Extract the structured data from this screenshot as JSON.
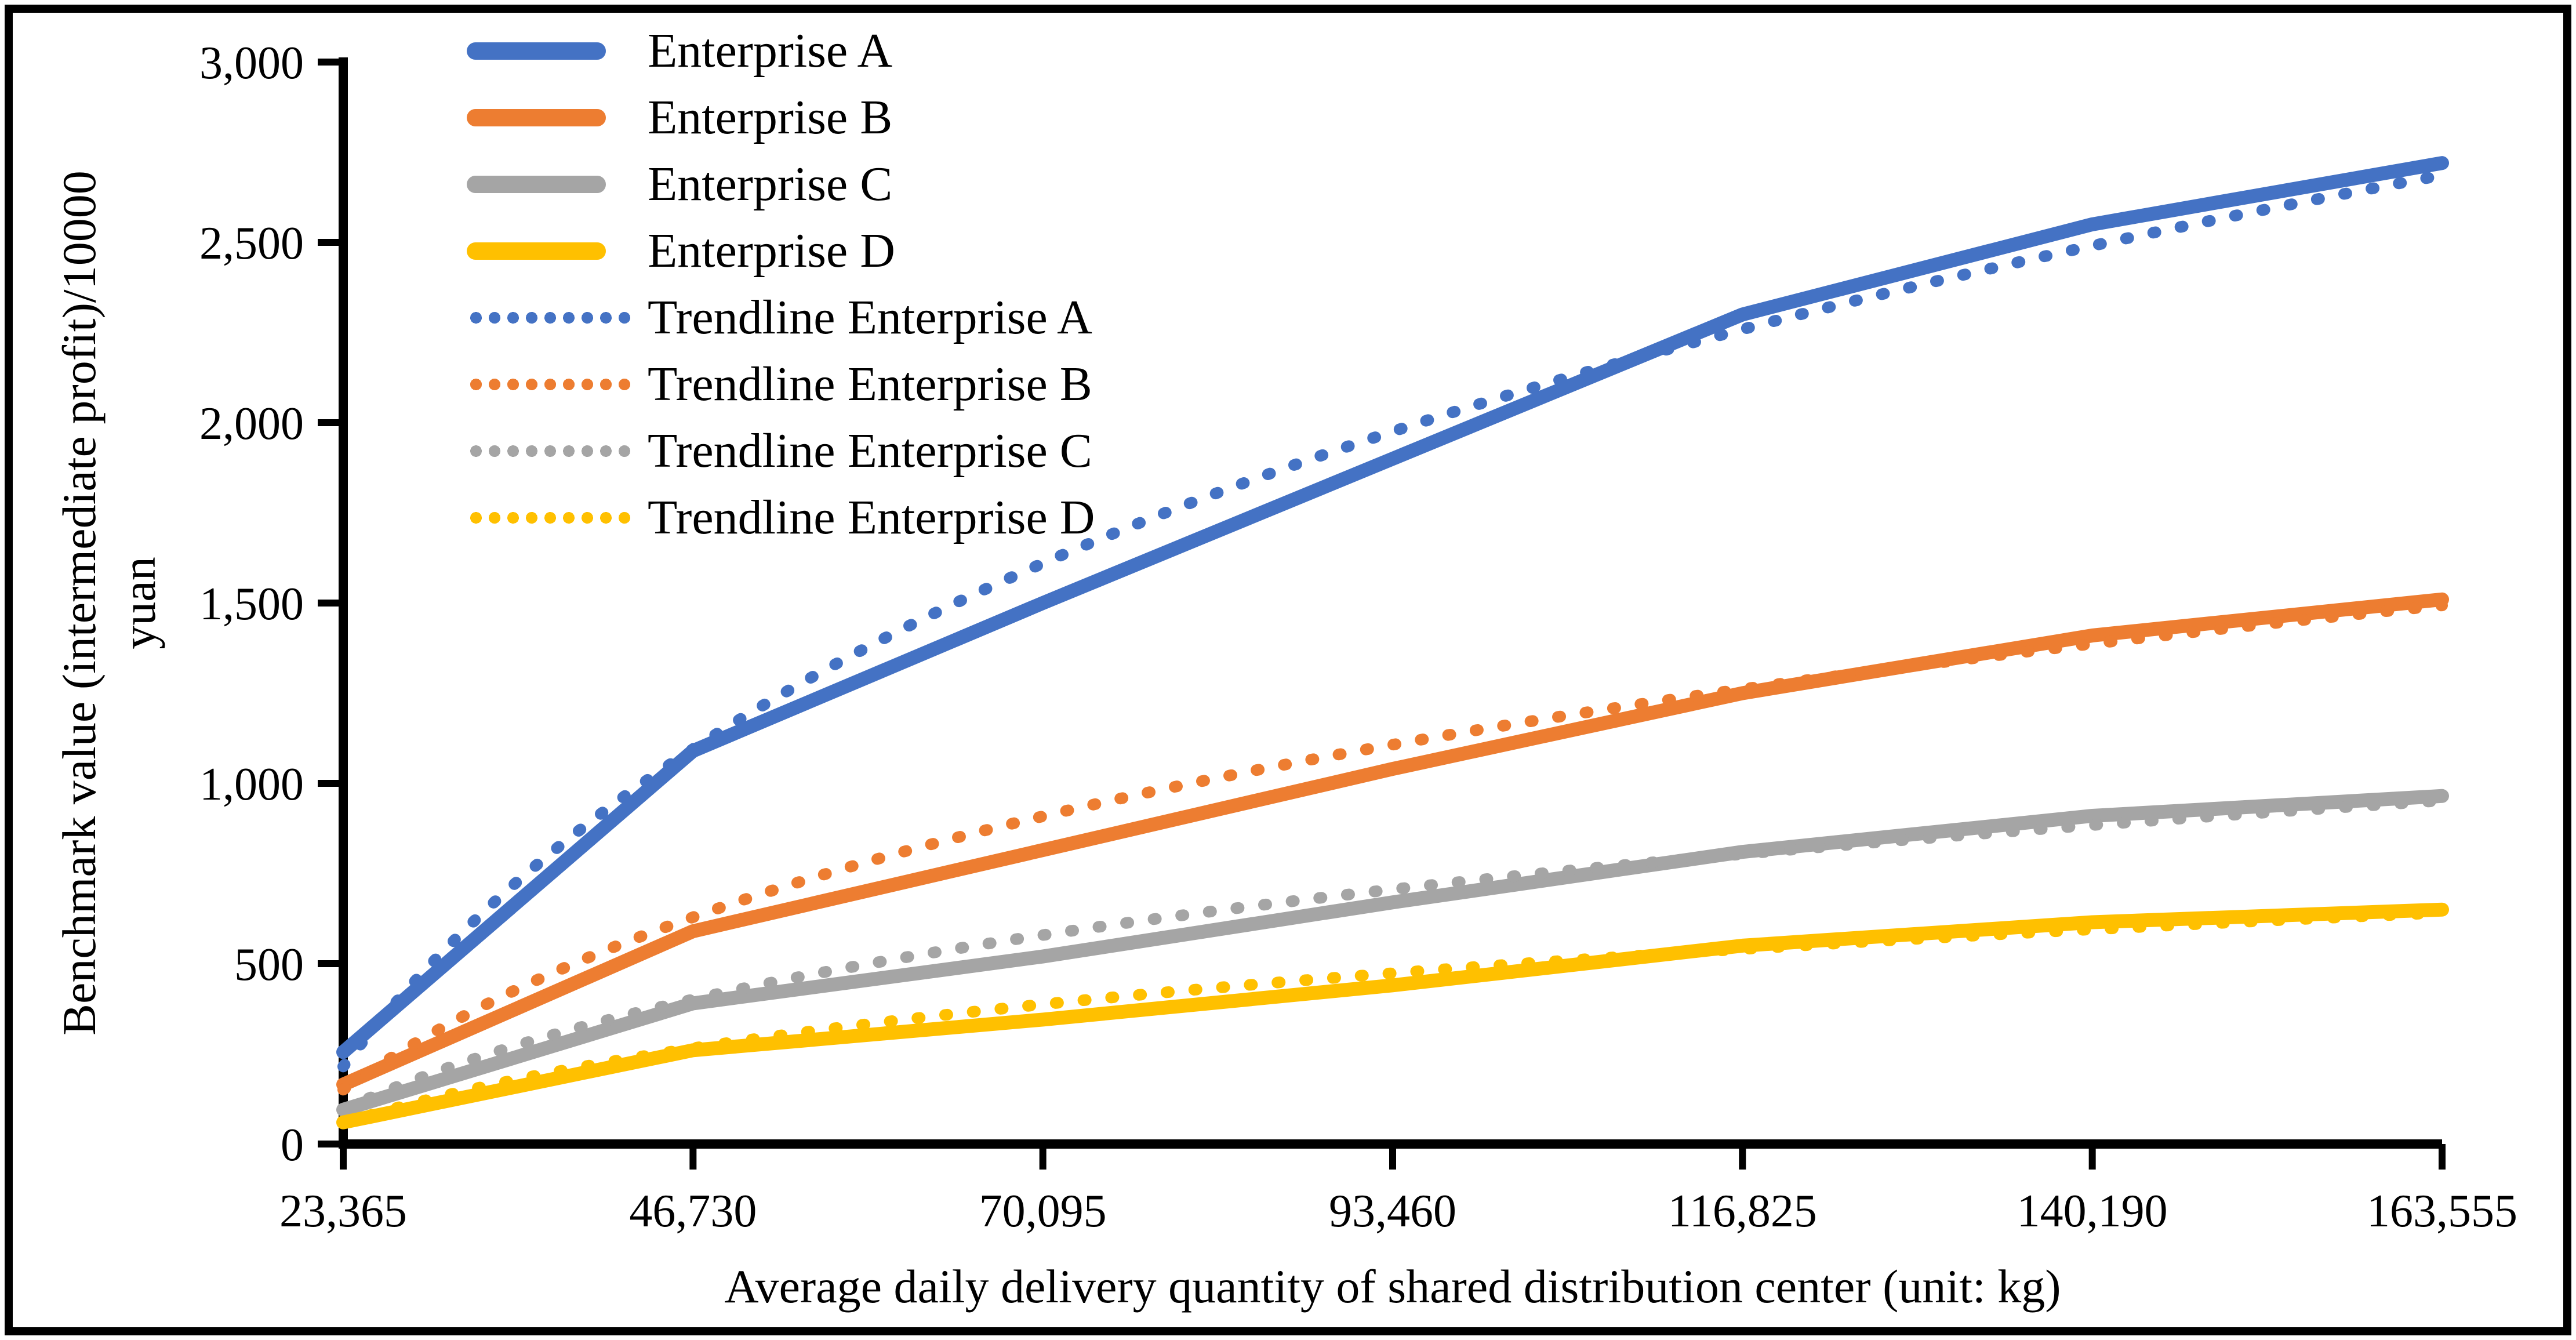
{
  "figure": {
    "background": "#FFFFFF",
    "border_color": "#000000",
    "text_color": "#000000"
  },
  "chart_data": {
    "type": "line",
    "title": "",
    "xlabel": "Average daily delivery quantity of shared distribution center (unit: kg)",
    "ylabel_line1": "Benchmark value (intermediate profit)/10000",
    "ylabel_line2": "yuan",
    "x": [
      23365,
      46730,
      70095,
      93460,
      116825,
      140190,
      163555
    ],
    "x_tick_labels": [
      "23,365",
      "46,730",
      "70,095",
      "93,460",
      "116,825",
      "140,190",
      "163,555"
    ],
    "ylim": [
      0,
      3000
    ],
    "y_ticks": [
      0,
      500,
      1000,
      1500,
      2000,
      2500,
      3000
    ],
    "y_tick_labels": [
      "0",
      "500",
      "1,000",
      "1,500",
      "2,000",
      "2,500",
      "3,000"
    ],
    "grid": false,
    "legend_position": "top-left-inside",
    "series": [
      {
        "name": "Enterprise A",
        "color": "#4472C4",
        "style": "solid",
        "values": [
          255,
          1090,
          1500,
          1900,
          2300,
          2550,
          2720
        ]
      },
      {
        "name": "Enterprise B",
        "color": "#ED7D31",
        "style": "solid",
        "values": [
          165,
          590,
          815,
          1040,
          1250,
          1410,
          1510
        ]
      },
      {
        "name": "Enterprise C",
        "color": "#A5A5A5",
        "style": "solid",
        "values": [
          95,
          390,
          520,
          670,
          810,
          910,
          965
        ]
      },
      {
        "name": "Enterprise D",
        "color": "#FFC000",
        "style": "solid",
        "values": [
          60,
          260,
          345,
          440,
          550,
          615,
          650
        ]
      }
    ],
    "trendlines": [
      {
        "name": "Trendline Enterprise A",
        "color": "#4472C4",
        "style": "dotted",
        "fit": "logarithmic",
        "a": 1270,
        "b": -12560
      },
      {
        "name": "Trendline Enterprise B",
        "color": "#ED7D31",
        "style": "dotted",
        "fit": "logarithmic",
        "a": 690,
        "b": -6790
      },
      {
        "name": "Trendline Enterprise C",
        "color": "#A5A5A5",
        "style": "dotted",
        "fit": "logarithmic",
        "a": 440,
        "b": -4330
      },
      {
        "name": "Trendline Enterprise D",
        "color": "#FFC000",
        "style": "dotted",
        "fit": "logarithmic",
        "a": 300,
        "b": -2960
      }
    ]
  }
}
